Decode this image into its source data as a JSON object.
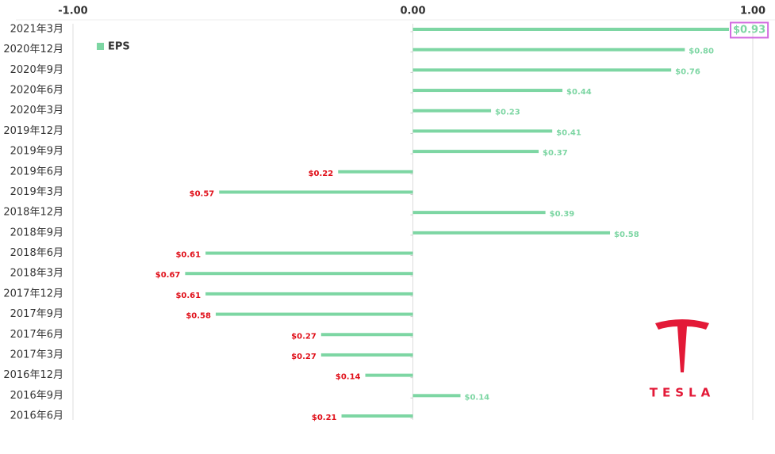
{
  "chart_data": {
    "type": "hbar",
    "categories": [
      "2021年3月",
      "2020年12月",
      "2020年9月",
      "2020年6月",
      "2020年3月",
      "2019年12月",
      "2019年9月",
      "2019年6月",
      "2019年3月",
      "2018年12月",
      "2018年9月",
      "2018年6月",
      "2018年3月",
      "2017年12月",
      "2017年9月",
      "2017年6月",
      "2017年3月",
      "2016年12月",
      "2016年9月",
      "2016年6月"
    ],
    "series": [
      {
        "name": "EPS",
        "color": "#7dd6a3",
        "values": [
          0.93,
          0.8,
          0.76,
          0.44,
          0.23,
          0.41,
          0.37,
          -0.22,
          -0.57,
          0.39,
          0.58,
          -0.61,
          -0.67,
          -0.61,
          -0.58,
          -0.27,
          -0.27,
          -0.14,
          0.14,
          -0.21
        ],
        "value_labels": [
          "$0.93",
          "$0.80",
          "$0.76",
          "$0.44",
          "$0.23",
          "$0.41",
          "$0.37",
          "$0.22",
          "$0.57",
          "$0.39",
          "$0.58",
          "$0.61",
          "$0.67",
          "$0.61",
          "$0.58",
          "$0.27",
          "$0.27",
          "$0.14",
          "$0.14",
          "$0.21"
        ]
      }
    ],
    "negative_label_color": "#e0101a",
    "xlim": [
      -1,
      1
    ],
    "xticks": [
      {
        "value": -1,
        "label": "-1.00"
      },
      {
        "value": 0,
        "label": "0.00"
      },
      {
        "value": 1,
        "label": "1.00"
      }
    ],
    "grid": true,
    "legend": "top-left",
    "logo_text": "TESLA"
  }
}
